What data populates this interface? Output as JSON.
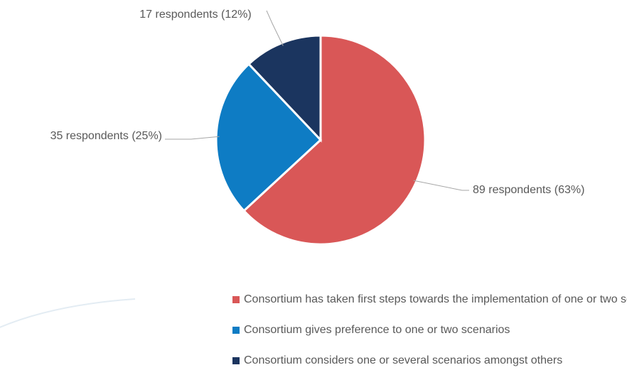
{
  "chart_data": {
    "type": "pie",
    "categories": [
      "Consortium has taken first steps towards the implementation of one or two scenarios",
      "Consortium gives preference to one or two scenarios",
      "Consortium considers one or several scenarios amongst others"
    ],
    "values": [
      89,
      35,
      17
    ],
    "value_labels": [
      "89 respondents (63%)",
      "35 respondents (25%)",
      "17 respondents (12%)"
    ],
    "colors": [
      "#d95757",
      "#0e7cc4",
      "#1b355f"
    ],
    "legend": "bottom"
  }
}
